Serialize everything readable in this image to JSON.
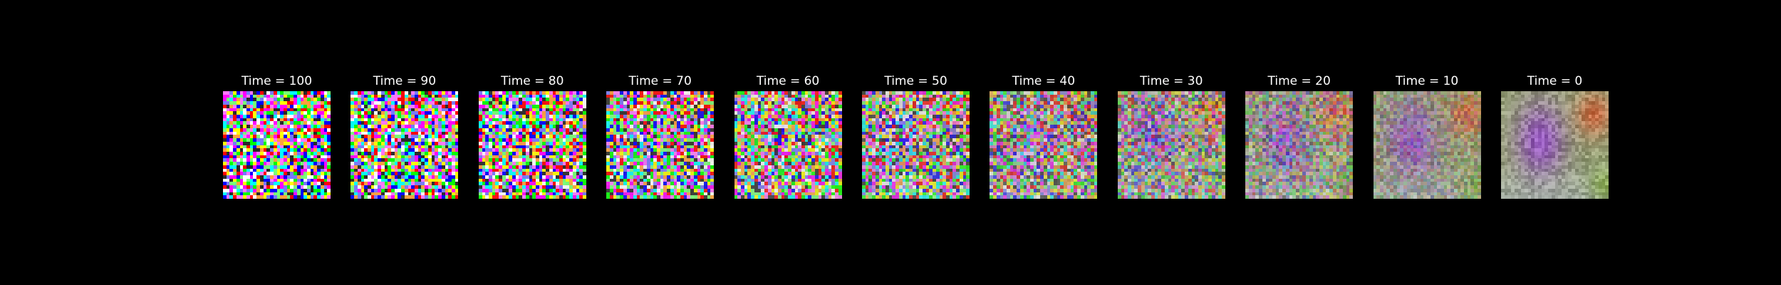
{
  "figure": {
    "background": "#000000",
    "title_color": "#ffffff",
    "panels": [
      {
        "title": "Time = 100",
        "noise_level": 1.0
      },
      {
        "title": "Time = 90",
        "noise_level": 0.95
      },
      {
        "title": "Time = 80",
        "noise_level": 0.9
      },
      {
        "title": "Time = 70",
        "noise_level": 0.82
      },
      {
        "title": "Time = 60",
        "noise_level": 0.74
      },
      {
        "title": "Time = 50",
        "noise_level": 0.65
      },
      {
        "title": "Time = 40",
        "noise_level": 0.55
      },
      {
        "title": "Time = 30",
        "noise_level": 0.42
      },
      {
        "title": "Time = 20",
        "noise_level": 0.28
      },
      {
        "title": "Time = 10",
        "noise_level": 0.12
      },
      {
        "title": "Time = 0",
        "noise_level": 0.0
      }
    ]
  }
}
